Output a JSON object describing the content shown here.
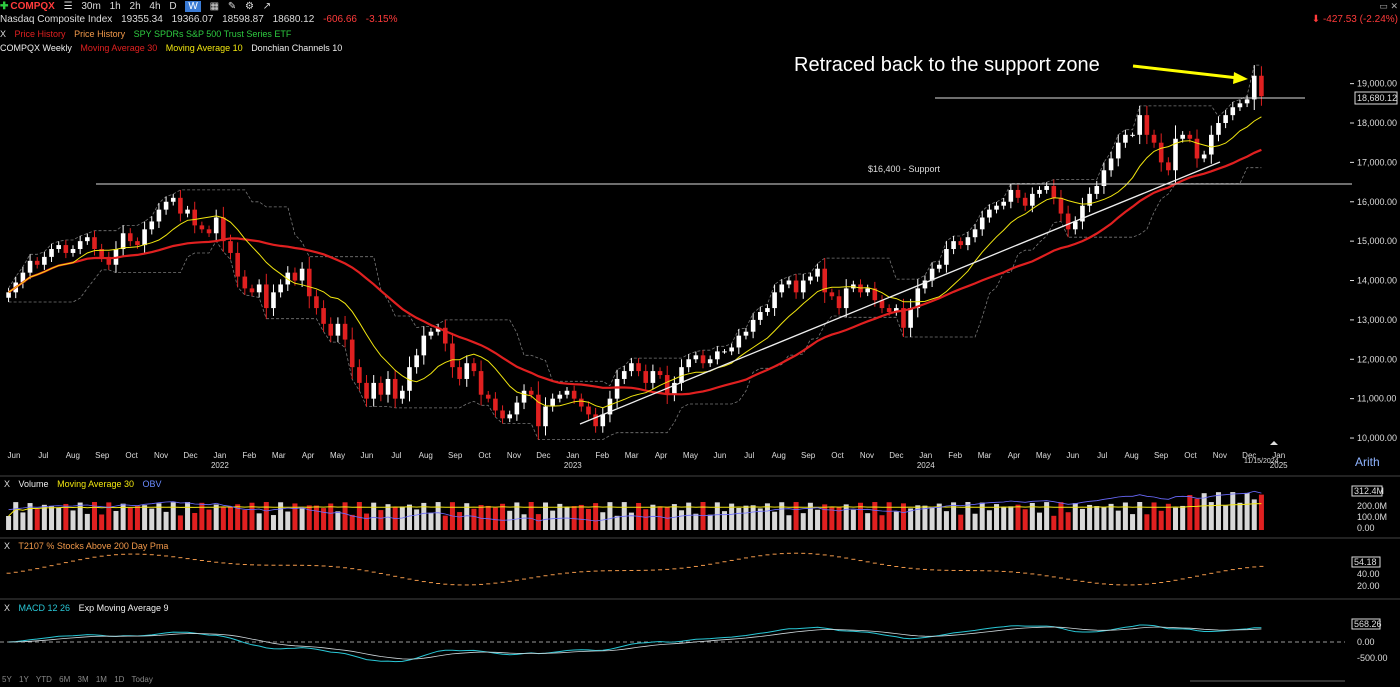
{
  "toolbar": {
    "symbol": "COMPQX",
    "timeframes": [
      "30m",
      "1h",
      "2h",
      "4h",
      "D",
      "W"
    ],
    "active_timeframe": "W"
  },
  "info": {
    "name": "Nasdaq Composite Index",
    "open": "19355.34",
    "high": "19366.07",
    "low": "18598.87",
    "close": "18680.12",
    "change": "-606.66",
    "change_pct": "-3.15%"
  },
  "top_right": {
    "change": "-427.53",
    "change_pct": "(-2.24%)"
  },
  "overlays": [
    "Price History",
    "Price History",
    "SPY SPDRs S&P 500 Trust Series ETF"
  ],
  "chart_header": {
    "series": "COMPQX Weekly",
    "ma30": "Moving Average 30",
    "ma10": "Moving Average 10",
    "donchian": "Donchian Channels 10"
  },
  "annotations": {
    "callout": "Retraced back to the support zone",
    "support_label": "$16,400 - Support",
    "date_box": "11/15/2024",
    "scale_mode": "Arith"
  },
  "volume_pane": {
    "label": "Volume",
    "ma": "Moving Average 30",
    "obv": "OBV",
    "last": "312.4M",
    "ticks": [
      "200.0M",
      "100.0M",
      "0.00"
    ]
  },
  "breadth_pane": {
    "label": "T2107 % Stocks Above 200 Day Pma",
    "last": "54.18",
    "ticks": [
      "40.00",
      "20.00"
    ]
  },
  "macd_pane": {
    "label": "MACD 12 26",
    "signal": "Exp Moving Average 9",
    "last": "568.26",
    "ticks": [
      "0.00",
      "-500.00"
    ]
  },
  "bottom_timeframes": [
    "5Y",
    "1Y",
    "YTD",
    "6M",
    "3M",
    "1M",
    "1D",
    "Today"
  ],
  "colors": {
    "up": "#ffffff",
    "down": "#e02020",
    "ma30": "#e02020",
    "ma10": "#f1e60f",
    "donchian": "#777777",
    "obv": "#6b6bff",
    "macd": "#29c7d6",
    "signal": "#cfd8dc"
  },
  "chart_data": {
    "type": "candlestick",
    "title": "COMPQX Weekly",
    "y_ticks": [
      10000,
      11000,
      12000,
      13000,
      14000,
      15000,
      16000,
      17000,
      18000,
      19000
    ],
    "y_tick_labels": [
      "10,000.00",
      "11,000.00",
      "12,000.00",
      "13,000.00",
      "14,000.00",
      "15,000.00",
      "16,000.00",
      "17,000.00",
      "18,000.00",
      "19,000.00"
    ],
    "ylim": [
      9950,
      19600
    ],
    "last_price_label": "18,680.12",
    "support_level": 16400,
    "resistance_level": 18680,
    "x_tick_labels": [
      {
        "label": "Jun",
        "year": ""
      },
      {
        "label": "Jul",
        "year": ""
      },
      {
        "label": "Aug",
        "year": ""
      },
      {
        "label": "Sep",
        "year": ""
      },
      {
        "label": "Oct",
        "year": ""
      },
      {
        "label": "Nov",
        "year": ""
      },
      {
        "label": "Dec",
        "year": ""
      },
      {
        "label": "Jan",
        "year": "2022"
      },
      {
        "label": "Feb",
        "year": ""
      },
      {
        "label": "Mar",
        "year": ""
      },
      {
        "label": "Apr",
        "year": ""
      },
      {
        "label": "May",
        "year": ""
      },
      {
        "label": "Jun",
        "year": ""
      },
      {
        "label": "Jul",
        "year": ""
      },
      {
        "label": "Aug",
        "year": ""
      },
      {
        "label": "Sep",
        "year": ""
      },
      {
        "label": "Oct",
        "year": ""
      },
      {
        "label": "Nov",
        "year": ""
      },
      {
        "label": "Dec",
        "year": ""
      },
      {
        "label": "Jan",
        "year": "2023"
      },
      {
        "label": "Feb",
        "year": ""
      },
      {
        "label": "Mar",
        "year": ""
      },
      {
        "label": "Apr",
        "year": ""
      },
      {
        "label": "May",
        "year": ""
      },
      {
        "label": "Jun",
        "year": ""
      },
      {
        "label": "Jul",
        "year": ""
      },
      {
        "label": "Aug",
        "year": ""
      },
      {
        "label": "Sep",
        "year": ""
      },
      {
        "label": "Oct",
        "year": ""
      },
      {
        "label": "Nov",
        "year": ""
      },
      {
        "label": "Dec",
        "year": ""
      },
      {
        "label": "Jan",
        "year": "2024"
      },
      {
        "label": "Feb",
        "year": ""
      },
      {
        "label": "Mar",
        "year": ""
      },
      {
        "label": "Apr",
        "year": ""
      },
      {
        "label": "May",
        "year": ""
      },
      {
        "label": "Jun",
        "year": ""
      },
      {
        "label": "Jul",
        "year": ""
      },
      {
        "label": "Aug",
        "year": ""
      },
      {
        "label": "Sep",
        "year": ""
      },
      {
        "label": "Oct",
        "year": ""
      },
      {
        "label": "Nov",
        "year": ""
      },
      {
        "label": "Dec",
        "year": ""
      },
      {
        "label": "Jan",
        "year": "2025"
      }
    ],
    "weekly_close": [
      13700,
      13950,
      14200,
      14500,
      14400,
      14600,
      14800,
      14900,
      14700,
      14800,
      15000,
      15100,
      14800,
      14600,
      14400,
      14800,
      15200,
      15000,
      14900,
      15300,
      15500,
      15800,
      16000,
      16100,
      15700,
      15800,
      15400,
      15300,
      15200,
      15600,
      15000,
      14700,
      14100,
      13800,
      13700,
      13900,
      13300,
      13700,
      13900,
      14200,
      14000,
      14300,
      13600,
      13300,
      12900,
      12600,
      12900,
      12500,
      11800,
      11400,
      11000,
      11400,
      11100,
      11500,
      11000,
      11200,
      11800,
      12100,
      12600,
      12700,
      12800,
      12400,
      11800,
      11500,
      11900,
      11700,
      11100,
      11000,
      10700,
      10500,
      10600,
      10900,
      11200,
      11100,
      10300,
      10800,
      11000,
      11100,
      11200,
      11000,
      10800,
      10600,
      10300,
      10600,
      11000,
      11500,
      11700,
      11900,
      11700,
      11400,
      11700,
      11600,
      11100,
      11400,
      11800,
      12000,
      12100,
      11900,
      12000,
      12200,
      12200,
      12300,
      12600,
      12700,
      13000,
      13200,
      13300,
      13700,
      13900,
      14000,
      13700,
      14000,
      14100,
      14300,
      13700,
      13600,
      13300,
      13800,
      13900,
      13700,
      13800,
      13500,
      13300,
      13200,
      13300,
      12800,
      13300,
      13800,
      14000,
      14300,
      14400,
      14800,
      15000,
      14900,
      15100,
      15300,
      15600,
      15800,
      15900,
      16000,
      16300,
      16100,
      15900,
      16200,
      16300,
      16400,
      16100,
      15700,
      15300,
      15500,
      15900,
      16200,
      16400,
      16800,
      17100,
      17500,
      17700,
      17700,
      18200,
      17700,
      17500,
      17000,
      16800,
      17600,
      17700,
      17600,
      17100,
      17200,
      17700,
      18000,
      18200,
      18400,
      18500,
      18600,
      19200,
      18680
    ]
  }
}
